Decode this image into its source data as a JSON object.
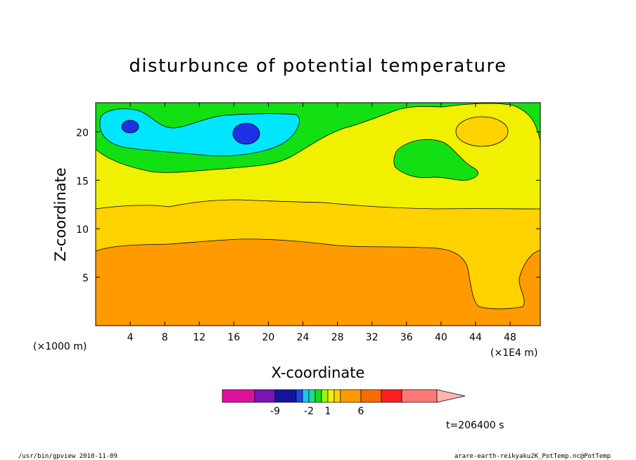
{
  "chart_data": {
    "type": "heatmap",
    "title": "disturbunce of potential temperature",
    "xlabel": "X-coordinate",
    "ylabel": "Z-coordinate",
    "x_unit": "(×1000 m)",
    "x_unit_right": "(×1E4 m)",
    "xlim": [
      0,
      51.5
    ],
    "ylim": [
      0,
      23
    ],
    "x_ticks": [
      "4",
      "8",
      "12",
      "16",
      "20",
      "24",
      "28",
      "32",
      "36",
      "40",
      "44",
      "48"
    ],
    "y_ticks": [
      "5",
      "10",
      "15",
      "20"
    ],
    "colorbar": {
      "colors": [
        "#e0109e",
        "#7a14b4",
        "#14149c",
        "#1a46f0",
        "#19c8f0",
        "#22dc8c",
        "#12e012",
        "#a0f014",
        "#f0f000",
        "#ffd200",
        "#ff9b00",
        "#f86c00",
        "#ff1e1e",
        "#ff7878",
        "#ffb4b4"
      ],
      "labels": [
        "-9",
        "-2",
        "1",
        "6"
      ],
      "label_bin_index": [
        2,
        5,
        8,
        11
      ]
    },
    "regions": [
      {
        "level": "orange",
        "color": "#ff9b00",
        "z_range": [
          0,
          8.5
        ]
      },
      {
        "level": "amber",
        "color": "#ffd200",
        "z_range": [
          8.5,
          12.5
        ]
      },
      {
        "level": "yellow",
        "color": "#f0f000",
        "z_range": [
          12.5,
          17
        ]
      },
      {
        "level": "green",
        "color": "#12e012",
        "z_range": [
          17,
          23
        ]
      },
      {
        "level": "cyan",
        "color": "#00e6ff",
        "center": [
          14,
          20
        ],
        "note": "negative anomaly"
      },
      {
        "level": "blue",
        "color": "#1e30e6",
        "centers": [
          [
            4,
            20.3
          ],
          [
            17.5,
            19.7
          ]
        ]
      }
    ]
  },
  "time_label": "t=206400 s",
  "footer": {
    "left": "/usr/bin/gpview   2010-11-09",
    "right": "arare-earth-reikyaku2K_PotTemp.nc@PotTemp"
  }
}
